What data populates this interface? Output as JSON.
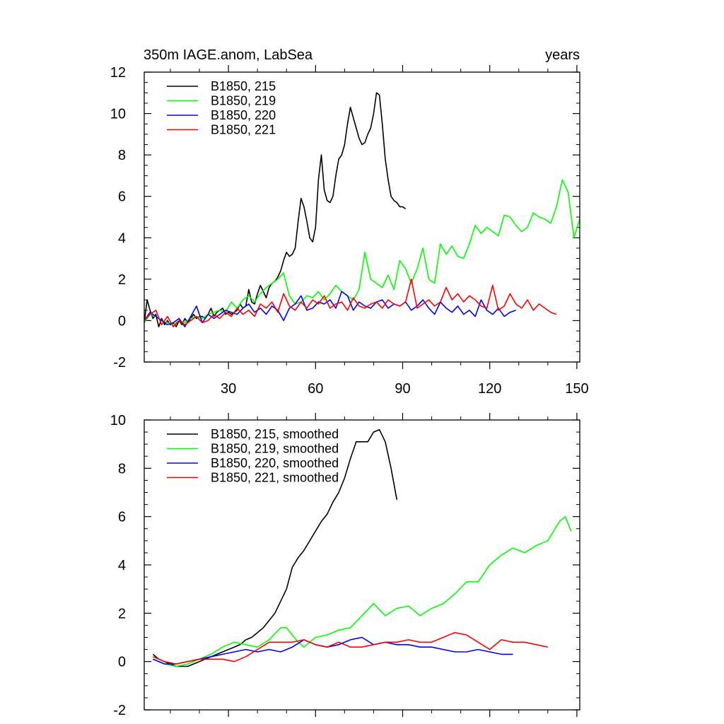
{
  "chart_data": [
    {
      "type": "line",
      "title": "350m IAGE.anom, LabSea",
      "title_right": "years",
      "xlabel": "",
      "ylabel": "",
      "xlim": [
        1,
        151
      ],
      "ylim": [
        -2,
        12
      ],
      "xticks": [
        30,
        60,
        90,
        120,
        150
      ],
      "xtick_labels": [
        "30",
        "60",
        "90",
        "120",
        "150"
      ],
      "yticks": [
        -2,
        0,
        2,
        4,
        6,
        8,
        10,
        12
      ],
      "ytick_labels": [
        "-2",
        "0",
        "2",
        "4",
        "6",
        "8",
        "10",
        "12"
      ],
      "legend_position": "top-left",
      "series": [
        {
          "name": "B1850, 215",
          "color": "#000000",
          "x": [
            1,
            2,
            3,
            4,
            5,
            6,
            7,
            8,
            9,
            10,
            11,
            12,
            13,
            14,
            15,
            16,
            17,
            18,
            19,
            20,
            21,
            22,
            23,
            24,
            25,
            26,
            27,
            28,
            29,
            30,
            31,
            32,
            33,
            34,
            35,
            36,
            37,
            38,
            39,
            40,
            41,
            42,
            43,
            44,
            45,
            46,
            47,
            48,
            49,
            50,
            51,
            52,
            53,
            54,
            55,
            56,
            57,
            58,
            59,
            60,
            61,
            62,
            63,
            64,
            65,
            66,
            67,
            68,
            69,
            70,
            71,
            72,
            73,
            74,
            75,
            76,
            77,
            78,
            79,
            80,
            81,
            82,
            83,
            84,
            85,
            86,
            87,
            88,
            89,
            90,
            91
          ],
          "values": [
            -0.1,
            1.0,
            0.5,
            0.1,
            0.3,
            -0.3,
            0.1,
            -0.2,
            0.0,
            -0.2,
            -0.1,
            -0.3,
            0.0,
            -0.2,
            0.1,
            -0.1,
            0.1,
            0.3,
            0.1,
            0.2,
            0.2,
            0.1,
            0.3,
            0.6,
            0.2,
            0.4,
            0.5,
            0.6,
            0.3,
            0.4,
            0.3,
            0.4,
            0.5,
            0.8,
            0.6,
            0.7,
            1.5,
            0.9,
            0.8,
            1.3,
            1.7,
            1.4,
            1.1,
            1.6,
            1.8,
            1.9,
            2.1,
            2.4,
            2.9,
            3.3,
            3.1,
            3.2,
            3.5,
            4.8,
            5.9,
            5.5,
            4.8,
            4.0,
            3.8,
            4.5,
            6.8,
            8.0,
            6.3,
            5.8,
            5.7,
            6.0,
            7.0,
            7.8,
            8.0,
            8.5,
            9.5,
            10.3,
            9.8,
            9.3,
            8.8,
            8.5,
            8.6,
            9.0,
            9.3,
            10.0,
            11.0,
            10.9,
            9.5,
            7.8,
            6.8,
            6.0,
            5.8,
            5.7,
            5.5,
            5.5,
            5.4
          ],
          "note": "x ticks at 30,60,90,120,150"
        },
        {
          "name": "B1850, 219",
          "color": "#00ff00",
          "x": [
            1,
            3,
            5,
            7,
            9,
            11,
            13,
            15,
            17,
            19,
            21,
            23,
            25,
            27,
            29,
            31,
            33,
            35,
            37,
            39,
            41,
            43,
            45,
            47,
            49,
            51,
            53,
            55,
            57,
            59,
            61,
            63,
            65,
            67,
            69,
            71,
            73,
            75,
            77,
            79,
            81,
            83,
            85,
            87,
            89,
            91,
            93,
            95,
            97,
            99,
            101,
            103,
            105,
            107,
            109,
            111,
            113,
            115,
            117,
            119,
            121,
            123,
            125,
            127,
            129,
            131,
            133,
            135,
            137,
            139,
            141,
            143,
            145,
            147,
            149,
            151
          ],
          "values": [
            -0.1,
            0.3,
            0.2,
            0.0,
            -0.1,
            -0.2,
            0.0,
            -0.1,
            0.1,
            0.2,
            0.1,
            0.3,
            0.4,
            0.5,
            0.4,
            0.9,
            0.6,
            1.0,
            1.2,
            0.9,
            1.3,
            1.6,
            1.8,
            2.0,
            2.3,
            1.2,
            0.8,
            0.9,
            1.2,
            1.1,
            1.4,
            1.0,
            1.3,
            1.7,
            1.4,
            1.2,
            1.0,
            1.5,
            3.3,
            2.0,
            1.8,
            1.6,
            2.2,
            1.5,
            2.9,
            2.5,
            1.8,
            2.5,
            3.5,
            2.0,
            1.8,
            3.7,
            3.2,
            3.6,
            3.1,
            3.0,
            3.7,
            4.6,
            4.2,
            4.5,
            4.3,
            4.1,
            5.1,
            5.0,
            4.6,
            4.3,
            4.5,
            5.2,
            5.0,
            4.9,
            4.7,
            5.5,
            6.8,
            6.2,
            4.0,
            4.9
          ]
        },
        {
          "name": "B1850, 220",
          "color": "#0000ff",
          "x": [
            1,
            3,
            5,
            7,
            9,
            11,
            13,
            15,
            17,
            19,
            21,
            23,
            25,
            27,
            29,
            31,
            33,
            35,
            37,
            39,
            41,
            43,
            45,
            47,
            49,
            51,
            53,
            55,
            57,
            59,
            61,
            63,
            65,
            67,
            69,
            71,
            73,
            75,
            77,
            79,
            81,
            83,
            85,
            87,
            89,
            91,
            93,
            95,
            97,
            99,
            101,
            103,
            105,
            107,
            109,
            111,
            113,
            115,
            117,
            119,
            121,
            123,
            125,
            127,
            129
          ],
          "values": [
            0.0,
            0.4,
            0.2,
            0.0,
            -0.2,
            -0.1,
            0.1,
            -0.3,
            0.2,
            0.7,
            -0.1,
            0.3,
            0.1,
            0.3,
            0.5,
            0.4,
            0.3,
            0.6,
            0.8,
            0.4,
            0.6,
            0.3,
            0.7,
            0.5,
            0.0,
            0.6,
            0.8,
            1.2,
            0.5,
            0.6,
            0.9,
            0.8,
            1.0,
            0.6,
            1.4,
            1.2,
            0.5,
            0.9,
            0.7,
            0.6,
            0.9,
            1.0,
            0.6,
            0.8,
            0.7,
            0.9,
            0.5,
            0.7,
            1.0,
            0.6,
            0.3,
            0.9,
            0.6,
            0.4,
            0.7,
            0.3,
            0.5,
            0.2,
            1.0,
            0.5,
            0.3,
            0.6,
            0.2,
            0.4,
            0.5
          ]
        },
        {
          "name": "B1850, 221",
          "color": "#ff0000",
          "x": [
            1,
            3,
            5,
            7,
            9,
            11,
            13,
            15,
            17,
            19,
            21,
            23,
            25,
            27,
            29,
            31,
            33,
            35,
            37,
            39,
            41,
            43,
            45,
            47,
            49,
            51,
            53,
            55,
            57,
            59,
            61,
            63,
            65,
            67,
            69,
            71,
            73,
            75,
            77,
            79,
            81,
            83,
            85,
            87,
            89,
            91,
            93,
            95,
            97,
            99,
            101,
            103,
            105,
            107,
            109,
            111,
            113,
            115,
            117,
            119,
            121,
            123,
            125,
            127,
            129,
            131,
            133,
            135,
            137,
            139,
            141,
            143
          ],
          "values": [
            0.0,
            0.3,
            0.5,
            -0.2,
            0.2,
            -0.3,
            0.0,
            -0.2,
            0.0,
            0.2,
            -0.1,
            0.0,
            0.3,
            0.1,
            0.4,
            0.2,
            0.6,
            0.3,
            0.5,
            0.2,
            0.8,
            0.6,
            0.9,
            0.4,
            1.3,
            0.7,
            0.5,
            0.9,
            0.6,
            1.0,
            0.8,
            1.2,
            0.6,
            0.8,
            0.9,
            0.5,
            1.1,
            0.7,
            0.6,
            0.8,
            0.9,
            0.6,
            1.0,
            0.8,
            0.7,
            0.9,
            2.0,
            0.6,
            0.8,
            1.0,
            0.7,
            0.9,
            1.6,
            1.0,
            1.3,
            0.9,
            1.2,
            1.0,
            0.7,
            0.6,
            1.7,
            0.5,
            0.7,
            1.3,
            0.8,
            0.6,
            1.0,
            0.5,
            0.8,
            0.6,
            0.4,
            0.3
          ]
        }
      ]
    },
    {
      "type": "line",
      "title": "",
      "xlabel": "",
      "ylabel": "",
      "xlim": [
        1,
        151
      ],
      "ylim": [
        -2,
        10
      ],
      "xticks": [
        30,
        60,
        90,
        120,
        150
      ],
      "yticks": [
        -2,
        0,
        2,
        4,
        6,
        8,
        10
      ],
      "ytick_labels": [
        "-2",
        "0",
        "2",
        "4",
        "6",
        "8",
        "10"
      ],
      "legend_position": "top-left",
      "series": [
        {
          "name": "B1850, 215, smoothed",
          "color": "#000000",
          "x": [
            4,
            6,
            8,
            10,
            12,
            14,
            16,
            18,
            20,
            22,
            24,
            26,
            28,
            30,
            32,
            34,
            36,
            38,
            40,
            42,
            44,
            46,
            48,
            50,
            52,
            54,
            56,
            58,
            60,
            62,
            64,
            66,
            68,
            70,
            72,
            74,
            76,
            78,
            80,
            82,
            84,
            86,
            88
          ],
          "values": [
            0.3,
            0.1,
            0.0,
            -0.1,
            -0.2,
            -0.2,
            -0.2,
            -0.1,
            0.0,
            0.1,
            0.2,
            0.3,
            0.4,
            0.5,
            0.6,
            0.7,
            0.9,
            1.0,
            1.2,
            1.4,
            1.7,
            2.0,
            2.5,
            3.0,
            3.9,
            4.3,
            4.6,
            5.0,
            5.4,
            5.8,
            6.1,
            6.6,
            7.0,
            7.6,
            8.4,
            9.1,
            9.1,
            9.1,
            9.5,
            9.6,
            9.1,
            8.0,
            6.7
          ]
        },
        {
          "name": "B1850, 219, smoothed",
          "color": "#00ff00",
          "x": [
            4,
            8,
            12,
            16,
            20,
            24,
            28,
            32,
            36,
            40,
            44,
            48,
            50,
            52,
            54,
            56,
            58,
            60,
            64,
            68,
            72,
            76,
            80,
            84,
            88,
            92,
            96,
            100,
            104,
            108,
            112,
            116,
            120,
            124,
            128,
            132,
            136,
            140,
            144,
            146,
            148
          ],
          "values": [
            0.1,
            -0.1,
            -0.2,
            -0.1,
            0.1,
            0.3,
            0.6,
            0.8,
            0.7,
            0.6,
            0.9,
            1.4,
            1.4,
            1.1,
            0.8,
            0.6,
            0.8,
            1.0,
            1.1,
            1.3,
            1.4,
            1.9,
            2.4,
            1.9,
            2.2,
            2.3,
            1.9,
            2.2,
            2.4,
            2.8,
            3.3,
            3.3,
            4.0,
            4.4,
            4.7,
            4.5,
            4.8,
            5.0,
            5.8,
            6.0,
            5.4
          ]
        },
        {
          "name": "B1850, 220, smoothed",
          "color": "#0000ff",
          "x": [
            4,
            8,
            12,
            16,
            20,
            24,
            28,
            32,
            36,
            40,
            44,
            48,
            52,
            56,
            60,
            64,
            68,
            72,
            76,
            80,
            84,
            88,
            92,
            96,
            100,
            104,
            108,
            112,
            116,
            120,
            124,
            128
          ],
          "values": [
            0.1,
            -0.1,
            -0.1,
            0.0,
            0.1,
            0.2,
            0.3,
            0.4,
            0.5,
            0.4,
            0.5,
            0.4,
            0.6,
            0.9,
            0.7,
            0.6,
            0.7,
            0.9,
            1.0,
            0.7,
            0.8,
            0.7,
            0.7,
            0.6,
            0.6,
            0.5,
            0.4,
            0.4,
            0.5,
            0.4,
            0.3,
            0.3
          ]
        },
        {
          "name": "B1850, 221, smoothed",
          "color": "#ff0000",
          "x": [
            4,
            8,
            12,
            16,
            20,
            24,
            28,
            32,
            36,
            40,
            44,
            48,
            52,
            56,
            60,
            64,
            68,
            72,
            76,
            80,
            84,
            88,
            92,
            96,
            100,
            104,
            108,
            112,
            116,
            120,
            124,
            128,
            132,
            136,
            140
          ],
          "values": [
            0.2,
            0.0,
            -0.1,
            0.0,
            0.1,
            0.1,
            0.1,
            0.0,
            0.2,
            0.5,
            0.8,
            0.8,
            0.8,
            0.9,
            0.7,
            0.6,
            0.8,
            0.6,
            0.6,
            0.7,
            0.8,
            0.8,
            0.9,
            0.8,
            0.8,
            1.0,
            1.2,
            1.1,
            0.8,
            0.5,
            0.9,
            0.8,
            0.8,
            0.7,
            0.6
          ]
        }
      ]
    }
  ]
}
